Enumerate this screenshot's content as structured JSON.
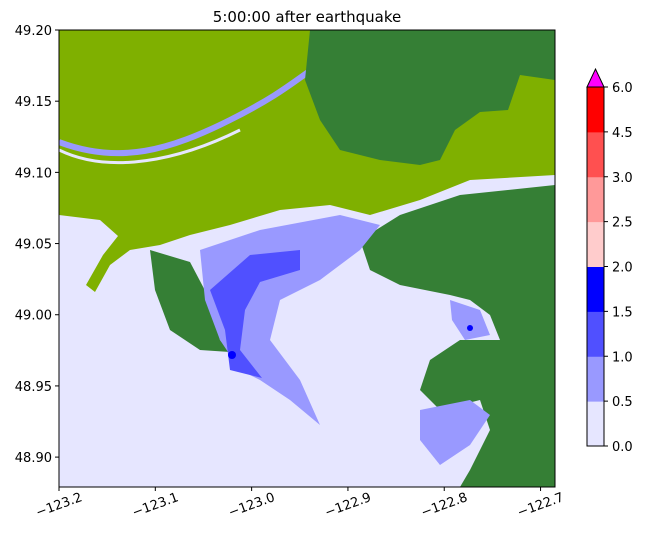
{
  "chart_data": {
    "type": "heatmap",
    "title": "5:00:00 after earthquake",
    "xlabel": "",
    "ylabel": "",
    "xlim": [
      -123.2,
      -122.685
    ],
    "ylim": [
      48.879,
      49.2
    ],
    "xticks": [
      -123.2,
      -123.1,
      -123.0,
      -122.9,
      -122.8,
      -122.7
    ],
    "xtick_labels": [
      "−123.2",
      "−123.1",
      "−123.0",
      "−122.9",
      "−122.8",
      "−122.7"
    ],
    "yticks": [
      49.2,
      49.15,
      49.1,
      49.05,
      49.0,
      48.95,
      48.9
    ],
    "ytick_labels": [
      "49.20",
      "49.15",
      "49.10",
      "49.05",
      "49.00",
      "48.95",
      "48.90"
    ],
    "colorbar": {
      "boundaries": [
        0.0,
        0.5,
        1.0,
        1.5,
        2.0,
        2.5,
        3.0,
        4.5,
        6.0
      ],
      "tick_labels": [
        "0.0",
        "0.5",
        "1.0",
        "1.5",
        "2.0",
        "2.5",
        "3.0",
        "4.5",
        "6.0"
      ],
      "colors": [
        "#e6e6ff",
        "#9999ff",
        "#5050ff",
        "#0000ff",
        "#ffcccc",
        "#ff9999",
        "#ff5050",
        "#ff0000"
      ],
      "extend_max_color": "#ff00ff",
      "extend": "max"
    },
    "land_colors": {
      "lowland": "#7fb000",
      "highland": "#357f35"
    },
    "water_color": "#e6e6ff"
  }
}
